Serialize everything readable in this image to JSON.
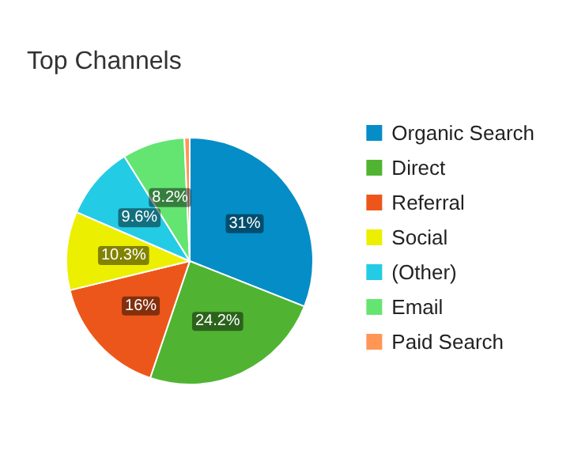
{
  "chart_data": {
    "type": "pie",
    "title": "Top Channels",
    "categories": [
      "Organic Search",
      "Direct",
      "Referral",
      "Social",
      "(Other)",
      "Email",
      "Paid Search"
    ],
    "values": [
      31,
      24.2,
      16,
      10.3,
      9.6,
      8.2,
      0.7
    ],
    "colors": [
      "#058dc7",
      "#50b432",
      "#ed561b",
      "#edef00",
      "#24cbe5",
      "#64e572",
      "#ff9655"
    ],
    "value_labels": [
      "31%",
      "24.2%",
      "16%",
      "10.3%",
      "9.6%",
      "8.2%",
      null
    ],
    "legend": "right"
  }
}
